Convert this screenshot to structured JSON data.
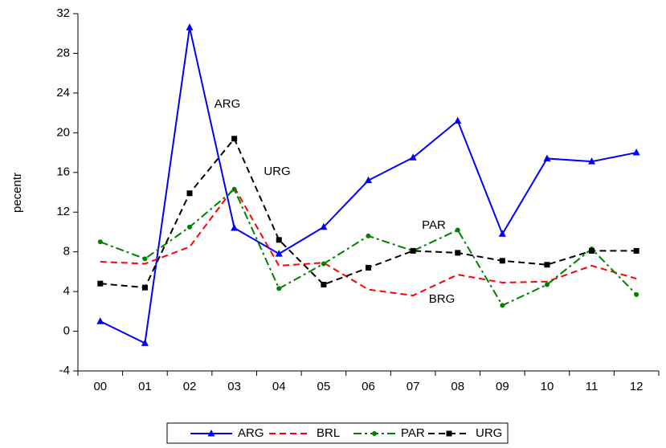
{
  "chart_data": {
    "type": "line",
    "y_label": "pecentr",
    "categories": [
      "00",
      "01",
      "02",
      "03",
      "04",
      "05",
      "06",
      "07",
      "08",
      "09",
      "10",
      "11",
      "12"
    ],
    "ylim": [
      -4,
      32
    ],
    "yticks": [
      -4,
      0,
      4,
      8,
      12,
      16,
      20,
      24,
      28,
      32
    ],
    "grid": false,
    "legend": "bottom",
    "annotations": [
      "ARG",
      "URG",
      "PAR",
      "BRG"
    ],
    "series": [
      {
        "name": "ARG",
        "color": "#0000ff",
        "marker": "triangle",
        "line_style": "solid",
        "values": [
          1.0,
          -1.2,
          30.6,
          10.4,
          7.8,
          10.5,
          15.2,
          17.5,
          21.2,
          9.8,
          17.4,
          17.1,
          18.0
        ]
      },
      {
        "name": "BRL",
        "color": "#ff0000",
        "marker": "none",
        "line_style": "dashed",
        "values": [
          7.0,
          6.8,
          8.5,
          14.5,
          6.6,
          6.9,
          4.2,
          3.6,
          5.7,
          4.9,
          5.0,
          6.6,
          5.3
        ]
      },
      {
        "name": "PAR",
        "color": "#008000",
        "marker": "circle",
        "line_style": "dashdot",
        "values": [
          9.0,
          7.3,
          10.5,
          14.3,
          4.3,
          6.8,
          9.6,
          8.1,
          10.2,
          2.6,
          4.7,
          8.3,
          3.7
        ]
      },
      {
        "name": "URG",
        "color": "#000000",
        "marker": "square",
        "line_style": "dashed",
        "values": [
          4.8,
          4.4,
          13.9,
          19.4,
          9.2,
          4.7,
          6.4,
          8.1,
          7.9,
          7.1,
          6.7,
          8.1,
          8.1
        ]
      }
    ]
  }
}
